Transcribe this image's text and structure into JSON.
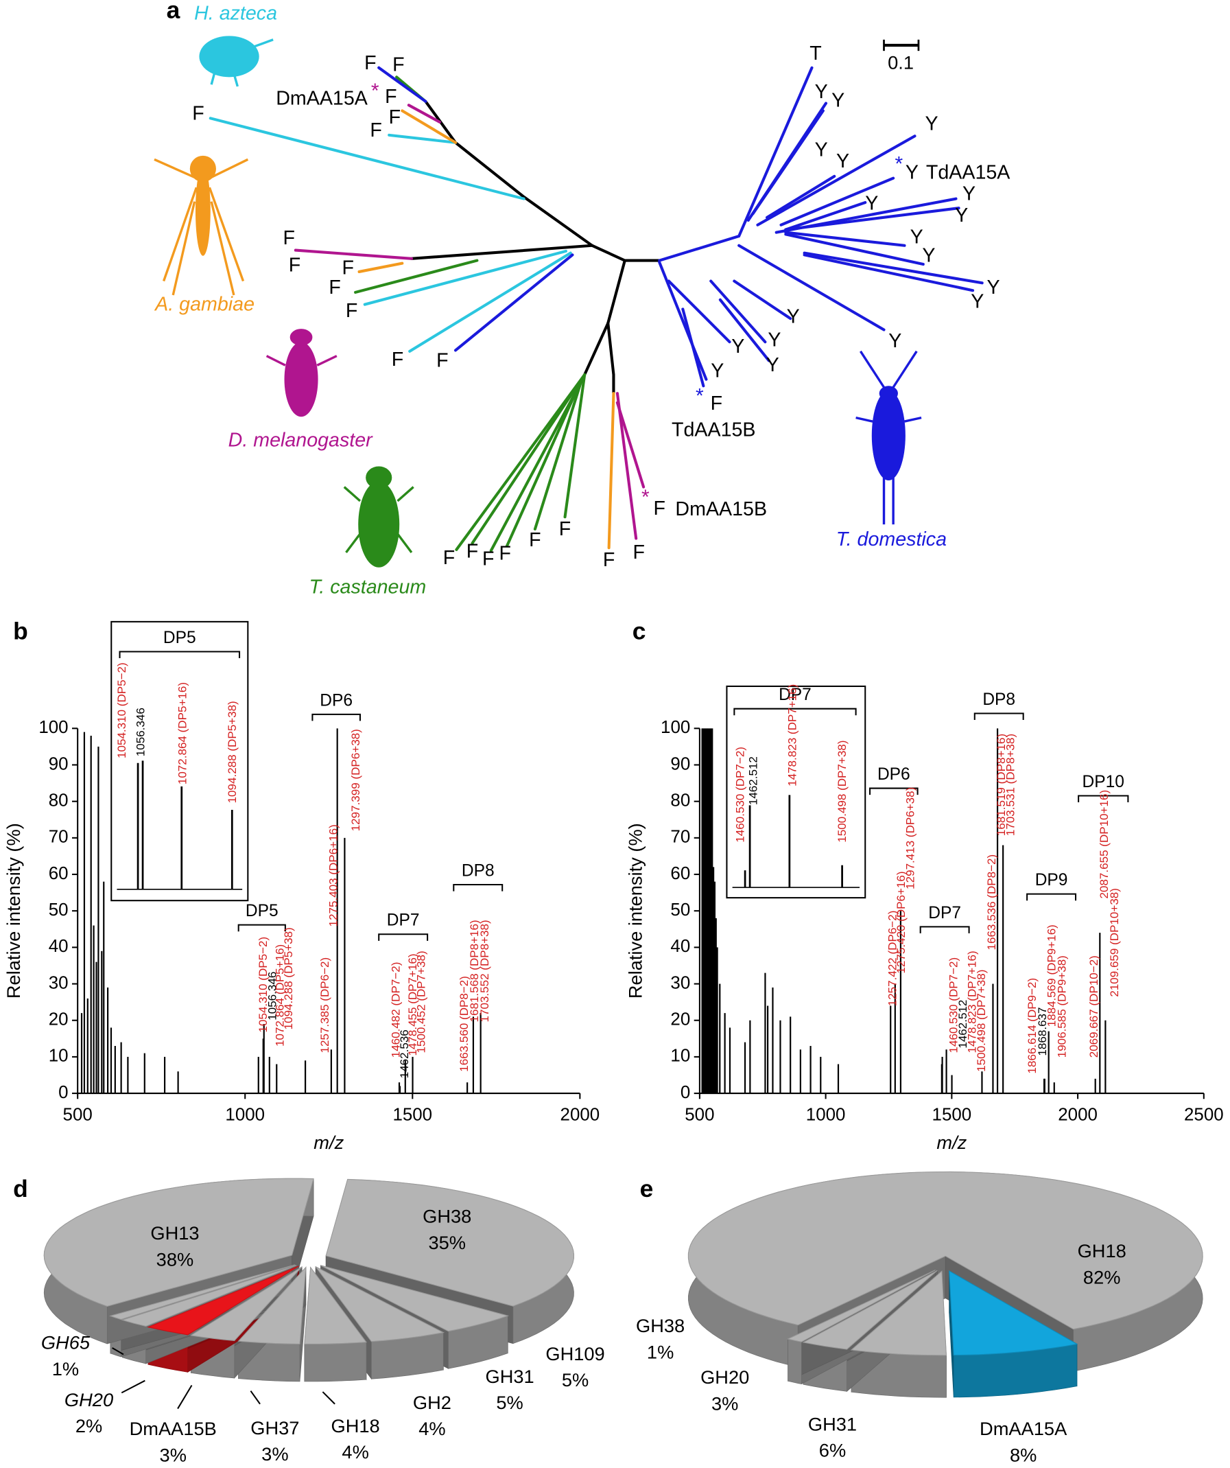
{
  "panels": [
    "a",
    "b",
    "c",
    "d",
    "e"
  ],
  "tree": {
    "scale_label": "0.1",
    "species": [
      {
        "name": "H. azteca",
        "color": "#2bc6df"
      },
      {
        "name": "A. gambiae",
        "color": "#f39a1e"
      },
      {
        "name": "D. melanogaster",
        "color": "#b0158f"
      },
      {
        "name": "T. castaneum",
        "color": "#2a8a1a"
      },
      {
        "name": "T. domestica",
        "color": "#1a1adc"
      }
    ],
    "leaves": [
      "F",
      "F",
      "F",
      "F",
      "F",
      "F",
      "F",
      "F",
      "F",
      "F",
      "F",
      "F",
      "F",
      "T",
      "Y",
      "Y",
      "Y",
      "Y",
      "Y",
      "Y",
      "Y",
      "Y",
      "Y",
      "Y",
      "Y",
      "Y",
      "Y",
      "Y",
      "Y",
      "Y",
      "Y",
      "Y",
      "Y",
      "F",
      "F",
      "F",
      "F",
      "F",
      "F",
      "F",
      "F",
      "F",
      "F"
    ],
    "names": [
      "DmAA15A",
      "TdAA15A",
      "TdAA15B",
      "DmAA15B"
    ],
    "asterisks": [
      "*",
      "*",
      "*",
      "*"
    ]
  },
  "chart_data": [
    {
      "type": "spectrum",
      "xlabel": "m/z",
      "ylabel": "Relative intensity (%)",
      "xlim": [
        500,
        2000
      ],
      "ylim": [
        0,
        100
      ],
      "xticks": [
        500,
        1000,
        1500,
        2000
      ],
      "yticks": [
        0,
        10,
        20,
        30,
        40,
        50,
        60,
        70,
        80,
        90,
        100
      ],
      "color": "#000000",
      "x": [
        512,
        520,
        530,
        540,
        548,
        556,
        562,
        572,
        578,
        590,
        600,
        612,
        630,
        650,
        700,
        760,
        800,
        1040,
        1054.31,
        1056.346,
        1072.864,
        1094.288,
        1180,
        1257.385,
        1275.403,
        1297.399,
        1460.482,
        1462.536,
        1478.455,
        1500.452,
        1663.56,
        1681.568,
        1703.552
      ],
      "values": [
        22,
        99,
        26,
        98,
        46,
        36,
        95,
        39,
        58,
        29,
        18,
        13,
        14,
        10,
        11,
        10,
        6,
        10,
        15,
        19,
        10,
        8,
        9,
        12,
        100,
        70,
        3,
        2,
        9,
        10,
        3,
        21,
        22
      ],
      "groups": [
        "DP5",
        "DP6",
        "DP7",
        "DP8"
      ],
      "annotations": [
        {
          "label": "1054.310 (DP5−2)",
          "color": "#d42020"
        },
        {
          "label": "1056.346",
          "color": "#000000"
        },
        {
          "label": "1072.864 (DP5+16)",
          "color": "#d42020"
        },
        {
          "label": "1094.288 (DP5+38)",
          "color": "#d42020"
        },
        {
          "label": "1257.385 (DP6−2)",
          "color": "#d42020"
        },
        {
          "label": "1275.403 (DP6+16)",
          "color": "#d42020"
        },
        {
          "label": "1297.399 (DP6+38)",
          "color": "#d42020"
        },
        {
          "label": "1460.482 (DP7−2)",
          "color": "#d42020"
        },
        {
          "label": "1462.536",
          "color": "#000000"
        },
        {
          "label": "1478.455 (DP7+16)",
          "color": "#d42020"
        },
        {
          "label": "1500.452 (DP7+38)",
          "color": "#d42020"
        },
        {
          "label": "1663.560 (DP8−2)",
          "color": "#d42020"
        },
        {
          "label": "1681.568 (DP8+16)",
          "color": "#d42020"
        },
        {
          "label": "1703.552 (DP8+38)",
          "color": "#d42020"
        }
      ],
      "inset": {
        "title": "DP5",
        "xlim": [
          1043,
          1101
        ],
        "ylim": [
          0,
          100
        ],
        "x": [
          1054.31,
          1056.346,
          1072.864,
          1094.288
        ],
        "values": [
          54,
          55,
          44,
          34
        ],
        "annotations": [
          {
            "label": "1054.310 (DP5−2)",
            "color": "#d42020"
          },
          {
            "label": "1056.346",
            "color": "#000000"
          },
          {
            "label": "1072.864 (DP5+16)",
            "color": "#d42020"
          },
          {
            "label": "1094.288 (DP5+38)",
            "color": "#d42020"
          }
        ]
      }
    },
    {
      "type": "spectrum",
      "xlabel": "m/z",
      "ylabel": "Relative intensity (%)",
      "xlim": [
        500,
        2500
      ],
      "ylim": [
        0,
        100
      ],
      "xticks": [
        500,
        1000,
        1500,
        2000,
        2500
      ],
      "yticks": [
        0,
        10,
        20,
        30,
        40,
        50,
        60,
        70,
        80,
        90,
        100
      ],
      "color": "#000000",
      "x": [
        510,
        515,
        520,
        525,
        530,
        535,
        540,
        545,
        550,
        555,
        560,
        565,
        570,
        580,
        600,
        620,
        680,
        700,
        760,
        770,
        790,
        820,
        860,
        900,
        940,
        980,
        1050,
        1257.422,
        1275.42,
        1297.413,
        1460.53,
        1462.512,
        1478.823,
        1500.498,
        1620,
        1663.536,
        1681.519,
        1703.531,
        1866.614,
        1868.637,
        1884.569,
        1906.585,
        2069.667,
        2087.655,
        2109.659
      ],
      "values": [
        100,
        100,
        100,
        100,
        100,
        100,
        100,
        100,
        100,
        62,
        58,
        48,
        40,
        30,
        22,
        18,
        14,
        20,
        33,
        24,
        29,
        20,
        21,
        12,
        13,
        10,
        8,
        24,
        30,
        50,
        8,
        10,
        12,
        5,
        6,
        30,
        100,
        68,
        4,
        4,
        17,
        3,
        4,
        44,
        20
      ],
      "groups": [
        "DP6",
        "DP7",
        "DP8",
        "DP9",
        "DP10"
      ],
      "annotations": [
        {
          "label": "1257.422 (DP6−2)",
          "color": "#d42020"
        },
        {
          "label": "1275.420 (DP6+16)",
          "color": "#d42020"
        },
        {
          "label": "1297.413 (DP6+38)",
          "color": "#d42020"
        },
        {
          "label": "1460.530 (DP7−2)",
          "color": "#d42020"
        },
        {
          "label": "1462.512",
          "color": "#000000"
        },
        {
          "label": "1478.823 (DP7+16)",
          "color": "#d42020"
        },
        {
          "label": "1500.498 (DP7+38)",
          "color": "#d42020"
        },
        {
          "label": "1663.536 (DP8−2)",
          "color": "#d42020"
        },
        {
          "label": "1681.519 (DP8+16)",
          "color": "#d42020"
        },
        {
          "label": "1703.531 (DP8+38)",
          "color": "#d42020"
        },
        {
          "label": "1866.614 (DP9−2)",
          "color": "#d42020"
        },
        {
          "label": "1868.637",
          "color": "#000000"
        },
        {
          "label": "1884.569 (DP9+16)",
          "color": "#d42020"
        },
        {
          "label": "1906.585 (DP9+38)",
          "color": "#d42020"
        },
        {
          "label": "2069.667 (DP10−2)",
          "color": "#d42020"
        },
        {
          "label": "2087.655 (DP10+16)",
          "color": "#d42020"
        },
        {
          "label": "2109.659 (DP10+38)",
          "color": "#d42020"
        }
      ],
      "inset": {
        "title": "DP7",
        "xlim": [
          1453,
          1510
        ],
        "ylim": [
          0,
          100
        ],
        "x": [
          1460.53,
          1462.512,
          1478.823,
          1500.498
        ],
        "values": [
          10,
          48,
          54,
          13
        ],
        "annotations": [
          {
            "label": "1460.530 (DP7−2)",
            "color": "#d42020"
          },
          {
            "label": "1462.512",
            "color": "#000000"
          },
          {
            "label": "1478.823 (DP7+16)",
            "color": "#d42020"
          },
          {
            "label": "1500.498 (DP7+38)",
            "color": "#d42020"
          }
        ]
      }
    },
    {
      "type": "pie",
      "categories": [
        "GH38",
        "GH109",
        "GH31",
        "GH2",
        "GH18",
        "GH37",
        "DmAA15B",
        "GH20",
        "GH65",
        "GH13"
      ],
      "values": [
        35,
        5,
        5,
        4,
        4,
        3,
        3,
        2,
        1,
        38
      ],
      "value_labels": [
        "35%",
        "5%",
        "5%",
        "4%",
        "4%",
        "3%",
        "3%",
        "2%",
        "1%",
        "38%"
      ],
      "colors": [
        "#b4b4b4",
        "#b4b4b4",
        "#b4b4b4",
        "#b4b4b4",
        "#b4b4b4",
        "#b4b4b4",
        "#e8141a",
        "#b4b4b4",
        "#b4b4b4",
        "#b4b4b4"
      ]
    },
    {
      "type": "pie",
      "categories": [
        "GH18",
        "DmAA15A",
        "GH31",
        "GH20",
        "GH38"
      ],
      "values": [
        82,
        8,
        6,
        3,
        1
      ],
      "value_labels": [
        "82%",
        "8%",
        "6%",
        "3%",
        "1%"
      ],
      "colors": [
        "#b4b4b4",
        "#12a5dc",
        "#b4b4b4",
        "#b4b4b4",
        "#b4b4b4"
      ]
    }
  ]
}
